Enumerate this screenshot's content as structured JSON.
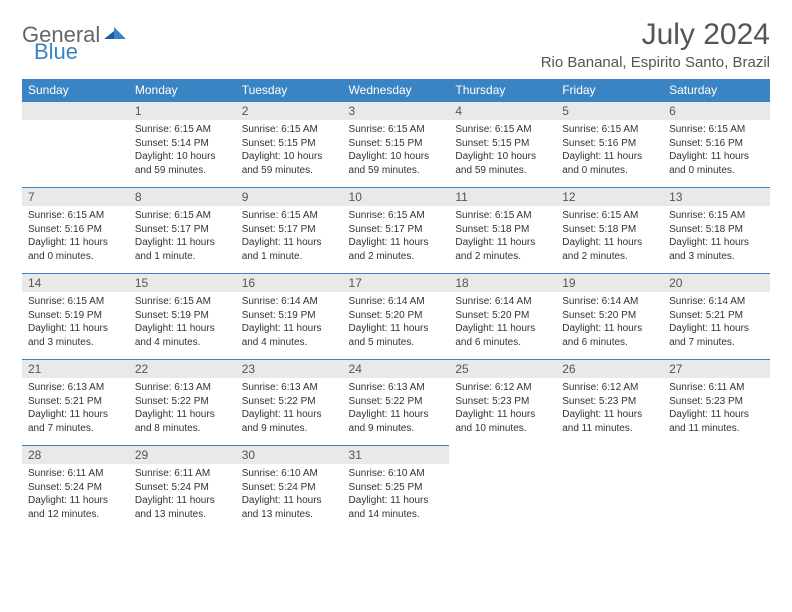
{
  "logo": {
    "text1": "General",
    "text2": "Blue"
  },
  "title": "July 2024",
  "location": "Rio Bananal, Espirito Santo, Brazil",
  "colors": {
    "header_bg": "#3b84c4",
    "header_text": "#ffffff",
    "daynum_bg": "#e9e9e9",
    "border": "#3b84c4",
    "text": "#333333",
    "title_text": "#555555"
  },
  "dayNames": [
    "Sunday",
    "Monday",
    "Tuesday",
    "Wednesday",
    "Thursday",
    "Friday",
    "Saturday"
  ],
  "weeks": [
    [
      null,
      {
        "n": "1",
        "sr": "6:15 AM",
        "ss": "5:14 PM",
        "dl": "10 hours and 59 minutes."
      },
      {
        "n": "2",
        "sr": "6:15 AM",
        "ss": "5:15 PM",
        "dl": "10 hours and 59 minutes."
      },
      {
        "n": "3",
        "sr": "6:15 AM",
        "ss": "5:15 PM",
        "dl": "10 hours and 59 minutes."
      },
      {
        "n": "4",
        "sr": "6:15 AM",
        "ss": "5:15 PM",
        "dl": "10 hours and 59 minutes."
      },
      {
        "n": "5",
        "sr": "6:15 AM",
        "ss": "5:16 PM",
        "dl": "11 hours and 0 minutes."
      },
      {
        "n": "6",
        "sr": "6:15 AM",
        "ss": "5:16 PM",
        "dl": "11 hours and 0 minutes."
      }
    ],
    [
      {
        "n": "7",
        "sr": "6:15 AM",
        "ss": "5:16 PM",
        "dl": "11 hours and 0 minutes."
      },
      {
        "n": "8",
        "sr": "6:15 AM",
        "ss": "5:17 PM",
        "dl": "11 hours and 1 minute."
      },
      {
        "n": "9",
        "sr": "6:15 AM",
        "ss": "5:17 PM",
        "dl": "11 hours and 1 minute."
      },
      {
        "n": "10",
        "sr": "6:15 AM",
        "ss": "5:17 PM",
        "dl": "11 hours and 2 minutes."
      },
      {
        "n": "11",
        "sr": "6:15 AM",
        "ss": "5:18 PM",
        "dl": "11 hours and 2 minutes."
      },
      {
        "n": "12",
        "sr": "6:15 AM",
        "ss": "5:18 PM",
        "dl": "11 hours and 2 minutes."
      },
      {
        "n": "13",
        "sr": "6:15 AM",
        "ss": "5:18 PM",
        "dl": "11 hours and 3 minutes."
      }
    ],
    [
      {
        "n": "14",
        "sr": "6:15 AM",
        "ss": "5:19 PM",
        "dl": "11 hours and 3 minutes."
      },
      {
        "n": "15",
        "sr": "6:15 AM",
        "ss": "5:19 PM",
        "dl": "11 hours and 4 minutes."
      },
      {
        "n": "16",
        "sr": "6:14 AM",
        "ss": "5:19 PM",
        "dl": "11 hours and 4 minutes."
      },
      {
        "n": "17",
        "sr": "6:14 AM",
        "ss": "5:20 PM",
        "dl": "11 hours and 5 minutes."
      },
      {
        "n": "18",
        "sr": "6:14 AM",
        "ss": "5:20 PM",
        "dl": "11 hours and 6 minutes."
      },
      {
        "n": "19",
        "sr": "6:14 AM",
        "ss": "5:20 PM",
        "dl": "11 hours and 6 minutes."
      },
      {
        "n": "20",
        "sr": "6:14 AM",
        "ss": "5:21 PM",
        "dl": "11 hours and 7 minutes."
      }
    ],
    [
      {
        "n": "21",
        "sr": "6:13 AM",
        "ss": "5:21 PM",
        "dl": "11 hours and 7 minutes."
      },
      {
        "n": "22",
        "sr": "6:13 AM",
        "ss": "5:22 PM",
        "dl": "11 hours and 8 minutes."
      },
      {
        "n": "23",
        "sr": "6:13 AM",
        "ss": "5:22 PM",
        "dl": "11 hours and 9 minutes."
      },
      {
        "n": "24",
        "sr": "6:13 AM",
        "ss": "5:22 PM",
        "dl": "11 hours and 9 minutes."
      },
      {
        "n": "25",
        "sr": "6:12 AM",
        "ss": "5:23 PM",
        "dl": "11 hours and 10 minutes."
      },
      {
        "n": "26",
        "sr": "6:12 AM",
        "ss": "5:23 PM",
        "dl": "11 hours and 11 minutes."
      },
      {
        "n": "27",
        "sr": "6:11 AM",
        "ss": "5:23 PM",
        "dl": "11 hours and 11 minutes."
      }
    ],
    [
      {
        "n": "28",
        "sr": "6:11 AM",
        "ss": "5:24 PM",
        "dl": "11 hours and 12 minutes."
      },
      {
        "n": "29",
        "sr": "6:11 AM",
        "ss": "5:24 PM",
        "dl": "11 hours and 13 minutes."
      },
      {
        "n": "30",
        "sr": "6:10 AM",
        "ss": "5:24 PM",
        "dl": "11 hours and 13 minutes."
      },
      {
        "n": "31",
        "sr": "6:10 AM",
        "ss": "5:25 PM",
        "dl": "11 hours and 14 minutes."
      },
      null,
      null,
      null
    ]
  ],
  "labels": {
    "sunrise": "Sunrise:",
    "sunset": "Sunset:",
    "daylight": "Daylight:"
  }
}
